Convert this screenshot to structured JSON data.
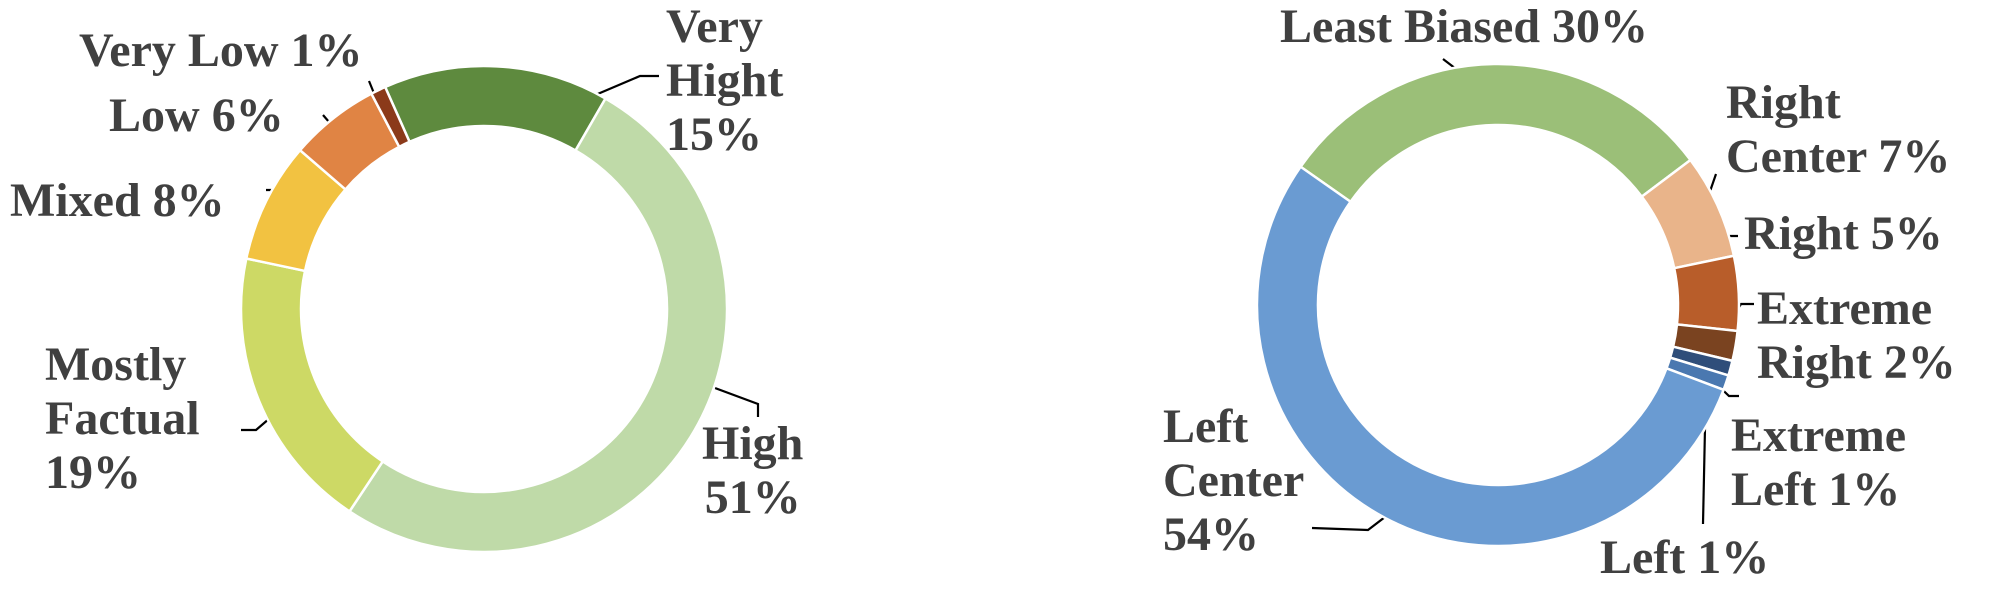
{
  "chart_data": [
    {
      "type": "donut",
      "categories": [
        "Very Hight",
        "High",
        "Mostly Factual",
        "Mixed",
        "Low",
        "Very Low"
      ],
      "values": [
        15,
        51,
        19,
        8,
        6,
        1
      ],
      "value_labels": [
        "15%",
        "51%",
        "19%",
        "8%",
        "6%",
        "1%"
      ],
      "colors": [
        "#5e8a3e",
        "#bfdaa8",
        "#cdd965",
        "#f2c241",
        "#e08444",
        "#8b3a1a"
      ]
    },
    {
      "type": "donut",
      "categories": [
        "Least Biased",
        "Right Center",
        "Right",
        "Extreme Right",
        "Extreme Left",
        "Left",
        "Left Center"
      ],
      "values": [
        30,
        7,
        5,
        2,
        1,
        1,
        54
      ],
      "value_labels": [
        "30%",
        "7%",
        "5%",
        "2%",
        "1%",
        "1%",
        "54%"
      ],
      "colors": [
        "#9bbf78",
        "#e9b48a",
        "#b85d2a",
        "#7a4320",
        "#2f4e7a",
        "#4a78b0",
        "#6a9bd2"
      ]
    }
  ]
}
